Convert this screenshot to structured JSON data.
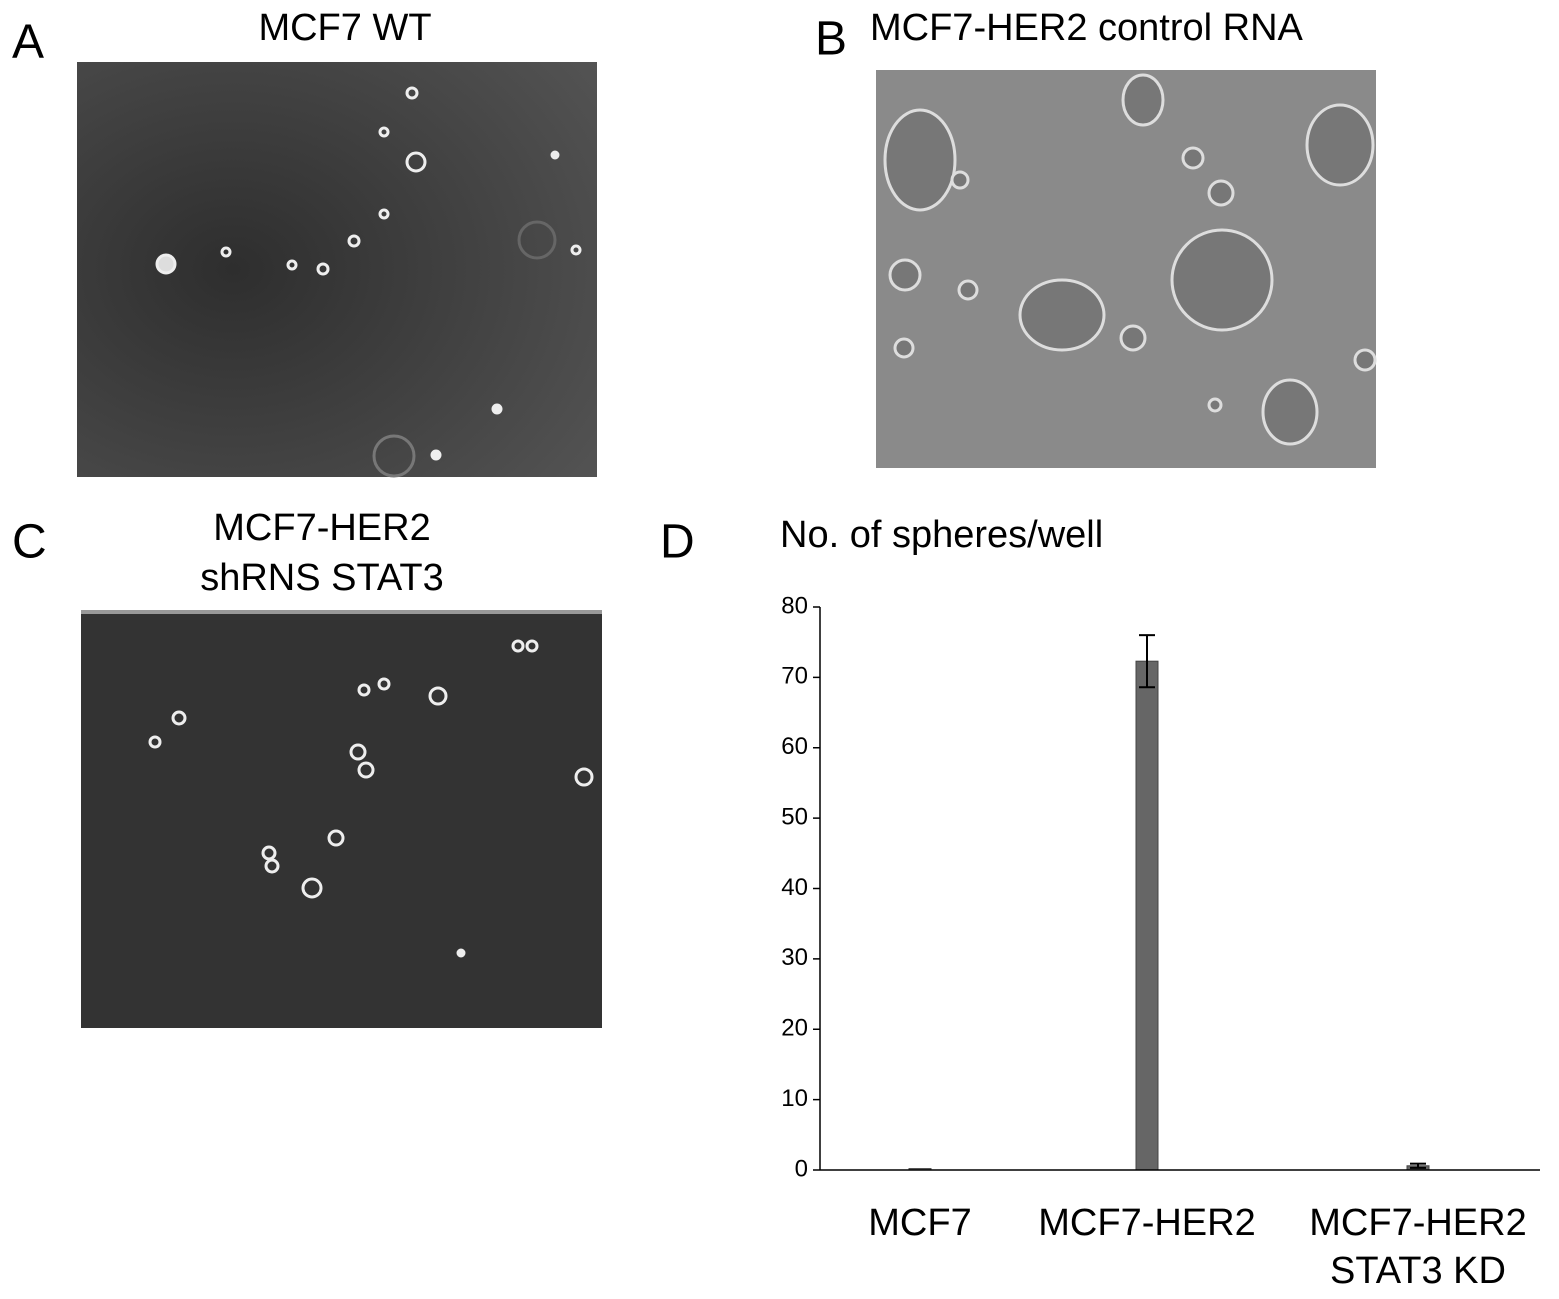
{
  "panels": [
    {
      "label": "A",
      "title": [
        "MCF7 WT"
      ]
    },
    {
      "label": "B",
      "title": [
        "MCF7-HER2 control RNA"
      ]
    },
    {
      "label": "C",
      "title": [
        "MCF7-HER2",
        "shRNS STAT3"
      ]
    },
    {
      "label": "D"
    }
  ],
  "chart_data": {
    "type": "bar",
    "title": "No. of spheres/well",
    "categories": [
      [
        "MCF7"
      ],
      [
        "MCF7-HER2"
      ],
      [
        "MCF7-HER2",
        "STAT3 KD"
      ]
    ],
    "values": [
      0.2,
      72.3,
      0.6
    ],
    "errors": [
      0,
      3.7,
      0.3
    ],
    "color": "#666666",
    "ylim": [
      0,
      80
    ],
    "yticks": [
      0,
      10,
      20,
      30,
      40,
      50,
      60,
      70,
      80
    ]
  }
}
